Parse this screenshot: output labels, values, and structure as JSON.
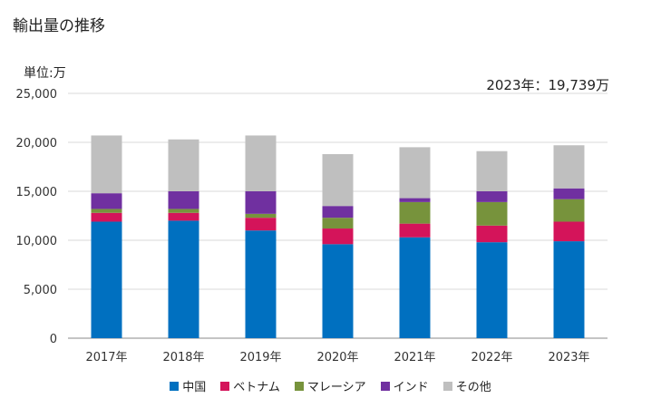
{
  "title": "輸出量の推移",
  "unit_label": "単位:万",
  "annotation": "2023年：19,739万",
  "chart_data": {
    "type": "bar",
    "stacked": true,
    "categories": [
      "2017年",
      "2018年",
      "2019年",
      "2020年",
      "2021年",
      "2022年",
      "2023年"
    ],
    "ylim": [
      0,
      25000
    ],
    "yticks": [
      0,
      5000,
      10000,
      15000,
      20000,
      25000
    ],
    "ytick_labels": [
      "0",
      "5,000",
      "10,000",
      "15,000",
      "20,000",
      "25,000"
    ],
    "grid": true,
    "legend_position": "bottom",
    "series": [
      {
        "name": "中国",
        "color": "#0070c0",
        "values": [
          11900,
          12000,
          11000,
          9600,
          10300,
          9800,
          9900
        ]
      },
      {
        "name": "ベトナム",
        "color": "#d4145a",
        "values": [
          900,
          800,
          1300,
          1600,
          1400,
          1700,
          2000
        ]
      },
      {
        "name": "マレーシア",
        "color": "#77933c",
        "values": [
          400,
          400,
          400,
          1100,
          2200,
          2400,
          2300
        ]
      },
      {
        "name": "インド",
        "color": "#7030a0",
        "values": [
          1600,
          1800,
          2300,
          1200,
          400,
          1100,
          1100
        ]
      },
      {
        "name": "その他",
        "color": "#bfbfbf",
        "values": [
          5900,
          5300,
          5700,
          5300,
          5200,
          4100,
          4400
        ]
      }
    ]
  }
}
